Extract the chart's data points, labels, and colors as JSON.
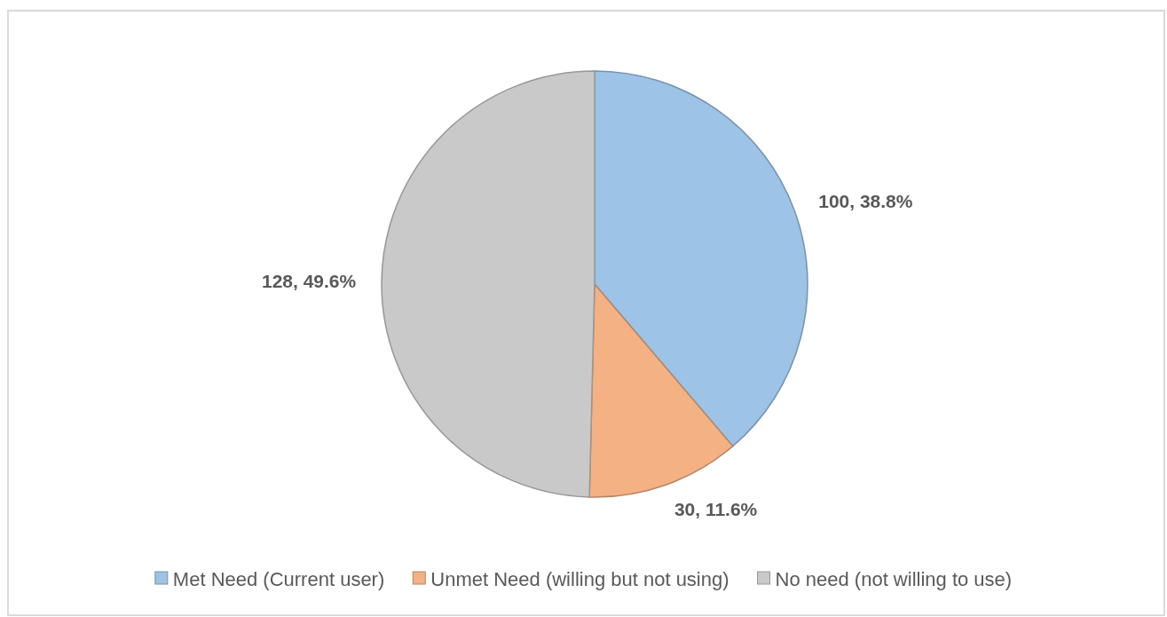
{
  "chart_data": {
    "type": "pie",
    "categories": [
      "Met Need (Current user)",
      "Unmet Need (willing but not using)",
      "No need (not willing to use)"
    ],
    "values": [
      100,
      30,
      128
    ],
    "colors": [
      "#9dc3e6",
      "#f4b183",
      "#c9c9c9"
    ],
    "value_labels": [
      "100, 38.8%",
      "30, 11.6%",
      "128, 49.6%"
    ],
    "legend": "bottom"
  }
}
